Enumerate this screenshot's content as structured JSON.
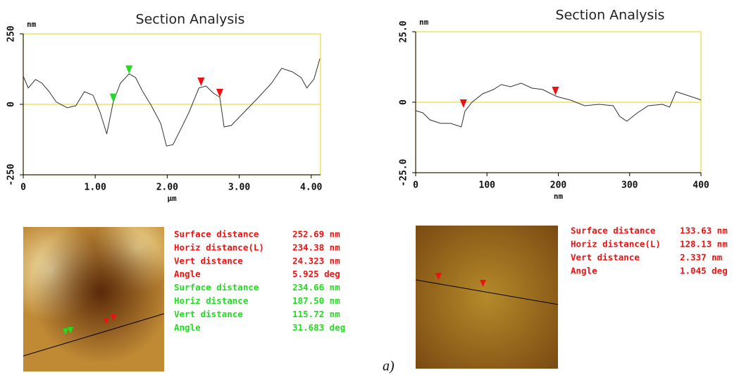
{
  "chart_data": [
    {
      "type": "line",
      "title": "Section Analysis",
      "xlabel": "µm",
      "ylabel": "nm",
      "x": [
        0,
        0.07,
        0.17,
        0.26,
        0.36,
        0.46,
        0.61,
        0.73,
        0.85,
        0.97,
        1.07,
        1.16,
        1.25,
        1.35,
        1.47,
        1.56,
        1.66,
        1.78,
        1.91,
        1.99,
        2.08,
        2.18,
        2.3,
        2.44,
        2.54,
        2.64,
        2.73,
        2.79,
        2.89,
        3.06,
        3.25,
        3.45,
        3.59,
        3.74,
        3.86,
        3.94,
        4.04,
        4.12
      ],
      "series": [
        {
          "color": "#333333",
          "values": [
            100,
            58,
            88,
            75,
            45,
            8,
            -12,
            -5,
            45,
            32,
            -30,
            -105,
            8,
            75,
            108,
            95,
            45,
            -5,
            -68,
            -148,
            -143,
            -92,
            -30,
            58,
            65,
            40,
            25,
            -80,
            -75,
            -30,
            20,
            75,
            128,
            115,
            95,
            58,
            90,
            162
          ]
        }
      ],
      "cursors": [
        {
          "color": "#22dd22",
          "x": [
            1.25,
            1.47
          ],
          "y": [
            8,
            108
          ]
        },
        {
          "color": "#ee1111",
          "x": [
            2.47,
            2.73
          ],
          "y": [
            65,
            25
          ]
        }
      ],
      "xlim": [
        0,
        4.13
      ],
      "xticks": [
        0,
        {
          "value": 1,
          "label": "1.00"
        },
        {
          "value": 2,
          "label": "2.00"
        },
        {
          "value": 3,
          "label": "3.00"
        },
        {
          "value": 4,
          "label": "4.00"
        }
      ],
      "ylim": [
        -250,
        250
      ],
      "yticks": [
        -250,
        0,
        250
      ]
    },
    {
      "type": "line",
      "title": "Section Analysis",
      "xlabel": "nm",
      "ylabel": "nm",
      "x": [
        0,
        10,
        20,
        35,
        49,
        64,
        69,
        79,
        94,
        109,
        120,
        133,
        148,
        163,
        178,
        198,
        217,
        237,
        257,
        277,
        286,
        296,
        311,
        326,
        346,
        356,
        365,
        380,
        395,
        400
      ],
      "series": [
        {
          "color": "#333333",
          "values": [
            -3,
            -3.75,
            -6.25,
            -7.5,
            -7.5,
            -8.75,
            -3.25,
            0,
            3,
            4.5,
            6.25,
            5.5,
            6.75,
            5,
            4.5,
            2,
            0.75,
            -1.25,
            -0.75,
            -1.25,
            -5,
            -6.75,
            -3.75,
            -1.25,
            -0.75,
            -1.75,
            3.75,
            2.5,
            1.25,
            0.75
          ]
        }
      ],
      "cursors": [
        {
          "color": "#ee1111",
          "x": [
            67,
            196
          ],
          "y": [
            -2,
            2.5
          ]
        }
      ],
      "xlim": [
        0,
        400
      ],
      "xticks": [
        0,
        100,
        200,
        300,
        400
      ],
      "ylim": [
        -25,
        25
      ],
      "yticks": [
        {
          "value": -25,
          "label": "-25.0"
        },
        0,
        {
          "value": 25,
          "label": "25.0"
        }
      ]
    }
  ],
  "measurements": [
    {
      "groups": [
        {
          "color": "#ee1111",
          "rows": [
            [
              "Surface distance",
              "252.69 nm"
            ],
            [
              "Horiz distance(L)",
              "234.38 nm"
            ],
            [
              "Vert distance",
              "24.323 nm"
            ],
            [
              "Angle",
              "5.925 deg"
            ]
          ]
        },
        {
          "color": "#22dd22",
          "rows": [
            [
              "Surface distance",
              "234.66 nm"
            ],
            [
              "Horiz distance",
              "187.50 nm"
            ],
            [
              "Vert distance",
              "115.72 nm"
            ],
            [
              "Angle",
              "31.683 deg"
            ]
          ]
        }
      ]
    },
    {
      "groups": [
        {
          "color": "#ee1111",
          "rows": [
            [
              "Surface distance",
              "133.63 nm"
            ],
            [
              "Horiz distance(L)",
              "128.13 nm"
            ],
            [
              "Vert distance",
              "2.337 nm"
            ],
            [
              "Angle",
              "1.045 deg"
            ]
          ]
        }
      ]
    }
  ],
  "caption": "a)"
}
